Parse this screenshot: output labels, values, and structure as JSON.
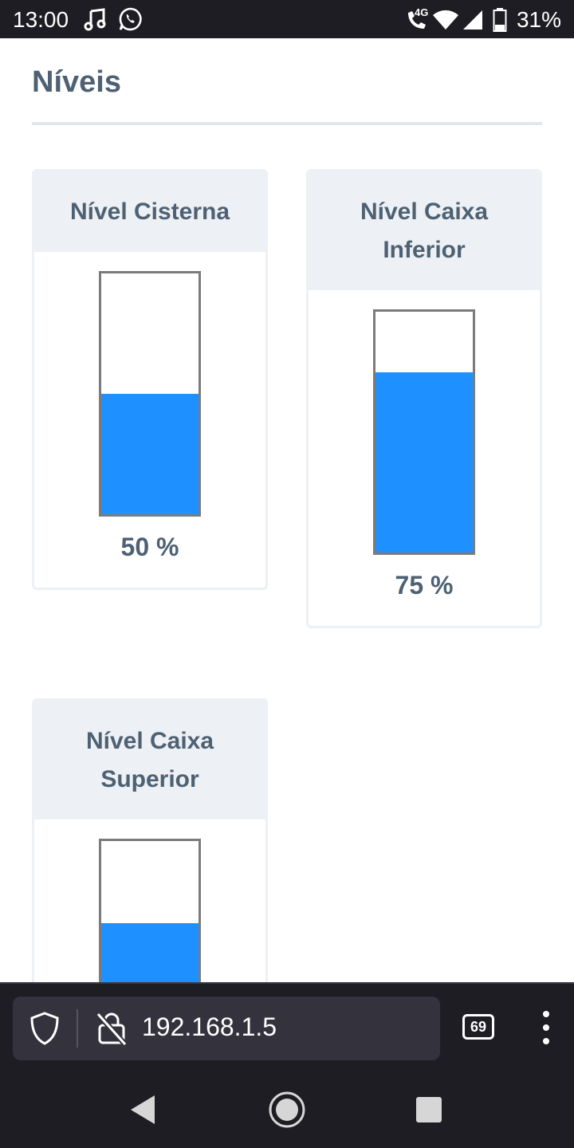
{
  "status_bar": {
    "time": "13:00",
    "network_label": "4G",
    "battery": "31%",
    "icons": [
      "music-note-icon",
      "whatsapp-icon",
      "volte-call-icon",
      "wifi-icon",
      "signal-icon",
      "battery-icon"
    ]
  },
  "page": {
    "title": "Níveis",
    "cards": [
      {
        "title": "Nível Cisterna",
        "level_percent": 50,
        "value_label": "50 %"
      },
      {
        "title": "Nível Caixa Inferior",
        "level_percent": 75,
        "value_label": "75 %"
      },
      {
        "title": "Nível Caixa Superior",
        "level_percent": 66,
        "value_label": ""
      }
    ],
    "colors": {
      "fill": "#1f90ff",
      "text": "#4e6173",
      "header_bg": "#edf0f4"
    }
  },
  "browser": {
    "url": "192.168.1.5",
    "tab_count": "69",
    "icons": [
      "shield-icon",
      "insecure-lock-icon",
      "tabs-icon",
      "more-menu-icon"
    ]
  },
  "nav": {
    "icons": [
      "back-icon",
      "home-icon",
      "recents-icon"
    ]
  }
}
